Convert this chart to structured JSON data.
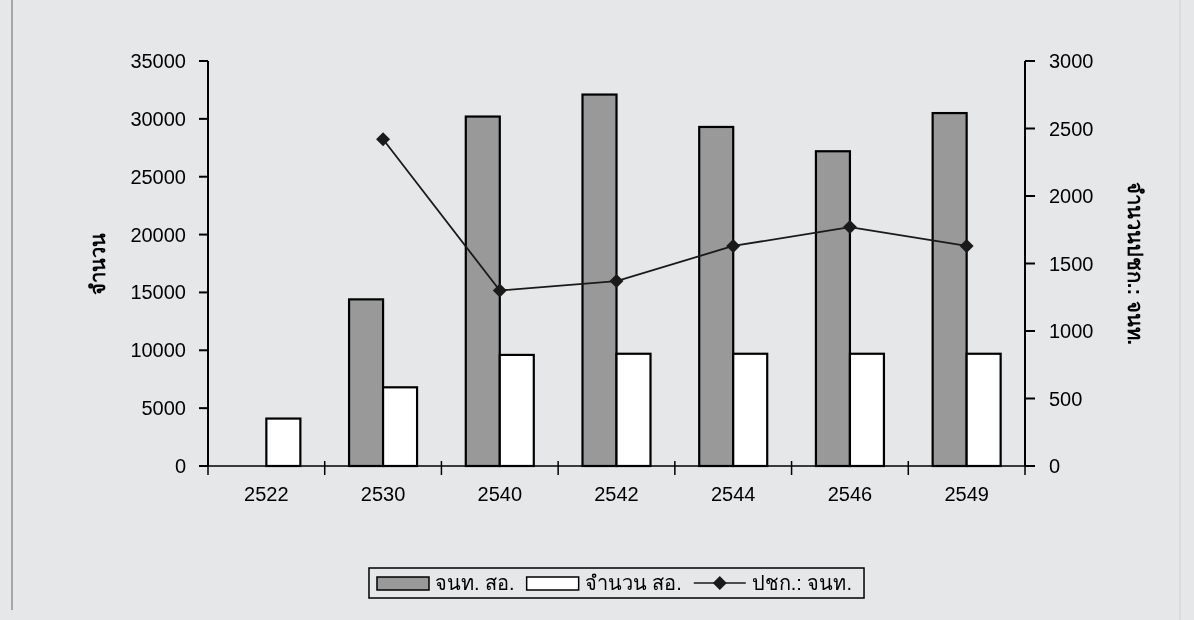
{
  "chart_data": {
    "type": "bar",
    "categories": [
      "2522",
      "2530",
      "2540",
      "2542",
      "2544",
      "2546",
      "2549"
    ],
    "ylabel": "จำนวน",
    "y2label": "จำนวนปชก.: จนท.",
    "series": [
      {
        "name": "จนท. สอ.",
        "color": "#999999",
        "values": [
          null,
          14400,
          30200,
          32100,
          29300,
          27200,
          30500
        ]
      },
      {
        "name": "จำนวน สอ.",
        "color": "#ffffff",
        "values": [
          4100,
          6800,
          9600,
          9700,
          9700,
          9700,
          9700
        ]
      },
      {
        "name": "ปชก.: จนท.",
        "type": "line",
        "axis": "y2",
        "color": "#1a1a1a",
        "marker": "diamond",
        "values": [
          null,
          2420,
          1300,
          1370,
          1630,
          1770,
          1630
        ]
      }
    ],
    "ylim": [
      0,
      35000
    ],
    "yticks": [
      0,
      5000,
      10000,
      15000,
      20000,
      25000,
      30000,
      35000
    ],
    "y2lim": [
      0,
      3000
    ],
    "y2ticks": [
      0,
      500,
      1000,
      1500,
      2000,
      2500,
      3000
    ],
    "legend": "bottom"
  }
}
